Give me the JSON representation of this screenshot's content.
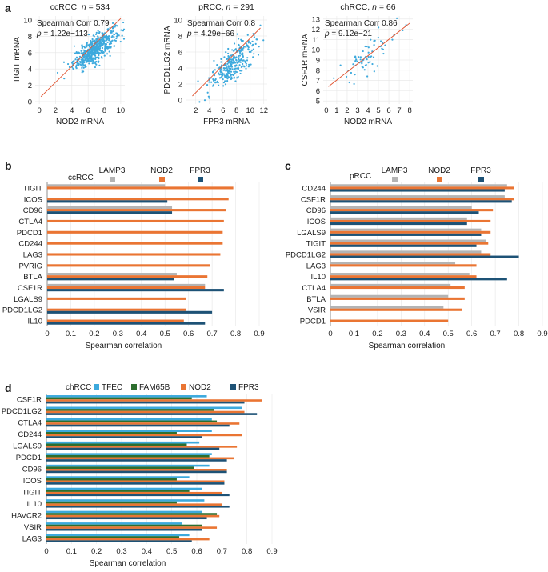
{
  "colors": {
    "LAMP3": "#b4b4b4",
    "NOD2": "#ea7533",
    "FPR3": "#1d5276",
    "TFEC": "#3ca9dd",
    "FAM65B": "#2d6e2e",
    "scatter_point": "#3ca9dd",
    "fit_line": "#e0522f",
    "grid": "#e6e6e6"
  },
  "chart_data": [
    {
      "panel": "a",
      "type": "scatter",
      "title": "ccRCC, n = 534",
      "title_prefix": "ccRCC, ",
      "title_n": "n",
      "title_suffix": " = 534",
      "xlabel": "NOD2 mRNA",
      "ylabel": "TIGIT mRNA",
      "xlim": [
        -0.5,
        10.5
      ],
      "ylim": [
        -0.3,
        10.5
      ],
      "xticks": [
        0,
        2,
        4,
        6,
        8,
        10
      ],
      "yticks": [
        0,
        2,
        4,
        6,
        8,
        10
      ],
      "annotation_corr": "Spearman Corr 0.79",
      "annotation_p_label": "p",
      "annotation_p_value": " = 1.22e−113",
      "n_points": 534,
      "cluster_center": [
        6.8,
        6.4
      ],
      "cluster_sd": [
        1.3,
        1.2
      ],
      "fit_line": [
        [
          0.2,
          0.6
        ],
        [
          10,
          10.2
        ]
      ]
    },
    {
      "panel": "a",
      "type": "scatter",
      "title": "pRCC, n = 291",
      "title_prefix": "pRCC, ",
      "title_n": "n",
      "title_suffix": " = 291",
      "xlabel": "FPR3 mRNA",
      "ylabel": "PDCD1LG2 mRNA",
      "xlim": [
        0.5,
        12.5
      ],
      "ylim": [
        -0.5,
        10.5
      ],
      "xticks": [
        2,
        4,
        6,
        8,
        10,
        12
      ],
      "yticks": [
        0,
        2,
        4,
        6,
        8,
        10
      ],
      "annotation_corr": "Spearman Corr 0.8",
      "annotation_p_label": "p",
      "annotation_p_value": " = 4.29e−66",
      "n_points": 291,
      "cluster_center": [
        7.5,
        4.6
      ],
      "cluster_sd": [
        1.7,
        1.6
      ],
      "fit_line": [
        [
          1.5,
          0.5
        ],
        [
          11.5,
          9.0
        ]
      ]
    },
    {
      "panel": "a",
      "type": "scatter",
      "title": "chRCC, n = 66",
      "title_prefix": "chRCC, ",
      "title_n": "n",
      "title_suffix": " = 66",
      "xlabel": "NOD2 mRNA",
      "ylabel": "CSF1R mRNA",
      "xlim": [
        -0.3,
        8.3
      ],
      "ylim": [
        4.7,
        13.3
      ],
      "xticks": [
        0,
        1,
        2,
        3,
        4,
        5,
        6,
        7,
        8
      ],
      "yticks": [
        5,
        6,
        7,
        8,
        9,
        10,
        11,
        12,
        13
      ],
      "annotation_corr": "Spearman Corr 0.86",
      "annotation_p_label": "p",
      "annotation_p_value": " = 9.12e−21",
      "n_points": 66,
      "cluster_center": [
        3.8,
        9.2
      ],
      "cluster_sd": [
        1.4,
        1.3
      ],
      "fit_line": [
        [
          0.2,
          6.4
        ],
        [
          8,
          12.6
        ]
      ]
    },
    {
      "panel": "b",
      "type": "bar",
      "orientation": "horizontal",
      "cohort": "ccRCC",
      "series_names": [
        "LAMP3",
        "NOD2",
        "FPR3"
      ],
      "xlabel": "Spearman correlation",
      "xlim": [
        0,
        0.9
      ],
      "xticks": [
        0,
        0.1,
        0.2,
        0.3,
        0.4,
        0.5,
        0.6,
        0.7,
        0.8,
        0.9
      ],
      "categories": [
        "TIGIT",
        "ICOS",
        "CD96",
        "CTLA4",
        "PDCD1",
        "CD244",
        "LAG3",
        "PVRIG",
        "BTLA",
        "CSF1R",
        "LGALS9",
        "PDCD1LG2",
        "IL10"
      ],
      "series": [
        {
          "name": "LAMP3",
          "values": [
            0.5,
            null,
            0.53,
            null,
            null,
            null,
            null,
            null,
            0.55,
            0.67,
            null,
            null,
            null
          ]
        },
        {
          "name": "NOD2",
          "values": [
            0.79,
            0.77,
            0.76,
            0.75,
            0.745,
            0.745,
            0.735,
            0.69,
            0.68,
            0.67,
            0.59,
            0.59,
            0.58
          ]
        },
        {
          "name": "FPR3",
          "values": [
            null,
            0.51,
            0.53,
            null,
            null,
            null,
            null,
            null,
            0.54,
            0.75,
            null,
            0.7,
            0.67
          ]
        }
      ]
    },
    {
      "panel": "c",
      "type": "bar",
      "orientation": "horizontal",
      "cohort": "pRCC",
      "series_names": [
        "LAMP3",
        "NOD2",
        "FPR3"
      ],
      "xlabel": "Spearman correlation",
      "xlim": [
        0,
        0.9
      ],
      "xticks": [
        0,
        0.1,
        0.2,
        0.3,
        0.4,
        0.5,
        0.6,
        0.7,
        0.8,
        0.9
      ],
      "categories": [
        "CD244",
        "CSF1R",
        "CD96",
        "ICOS",
        "LGALS9",
        "TIGIT",
        "PDCD1LG2",
        "LAG3",
        "IL10",
        "CTLA4",
        "BTLA",
        "VSIR",
        "PDCD1"
      ],
      "series": [
        {
          "name": "LAMP3",
          "values": [
            0.75,
            0.74,
            0.6,
            0.58,
            0.64,
            0.66,
            0.64,
            0.53,
            0.59,
            0.51,
            0.5,
            0.48,
            null
          ]
        },
        {
          "name": "NOD2",
          "values": [
            0.78,
            0.78,
            0.69,
            0.68,
            0.68,
            0.67,
            0.68,
            0.62,
            0.62,
            0.57,
            0.57,
            0.56,
            0.5
          ]
        },
        {
          "name": "FPR3",
          "values": [
            0.74,
            0.77,
            0.63,
            0.58,
            0.64,
            0.62,
            0.8,
            null,
            0.75,
            null,
            null,
            null,
            null
          ]
        }
      ]
    },
    {
      "panel": "d",
      "type": "bar",
      "orientation": "horizontal",
      "cohort": "chRCC",
      "series_names": [
        "TFEC",
        "FAM65B",
        "NOD2",
        "FPR3"
      ],
      "xlabel": "Spearman correlation",
      "xlim": [
        0,
        0.9
      ],
      "xticks": [
        0,
        0.1,
        0.2,
        0.3,
        0.4,
        0.5,
        0.6,
        0.7,
        0.8,
        0.9
      ],
      "categories": [
        "CSF1R",
        "PDCD1LG2",
        "CTLA4",
        "CD244",
        "LGALS9",
        "PDCD1",
        "CD96",
        "ICOS",
        "TIGIT",
        "IL10",
        "HAVCR2",
        "VSIR",
        "LAG3"
      ],
      "series": [
        {
          "name": "TFEC",
          "values": [
            0.64,
            0.78,
            0.66,
            0.66,
            0.61,
            0.66,
            0.65,
            0.57,
            0.62,
            0.63,
            0.62,
            0.54,
            0.57
          ]
        },
        {
          "name": "FAM65B",
          "values": [
            0.58,
            0.67,
            0.68,
            0.52,
            0.56,
            0.65,
            0.59,
            0.52,
            0.57,
            0.52,
            0.68,
            0.62,
            0.53
          ]
        },
        {
          "name": "NOD2",
          "values": [
            0.86,
            0.79,
            0.77,
            0.78,
            0.76,
            0.75,
            0.72,
            0.71,
            0.7,
            0.7,
            0.69,
            0.68,
            0.65
          ]
        },
        {
          "name": "FPR3",
          "values": [
            0.79,
            0.84,
            0.73,
            0.62,
            0.69,
            0.72,
            0.72,
            0.71,
            0.73,
            0.73,
            0.64,
            0.62,
            0.58
          ]
        }
      ]
    }
  ],
  "panel_labels": {
    "a": "a",
    "b": "b",
    "c": "c",
    "d": "d"
  }
}
